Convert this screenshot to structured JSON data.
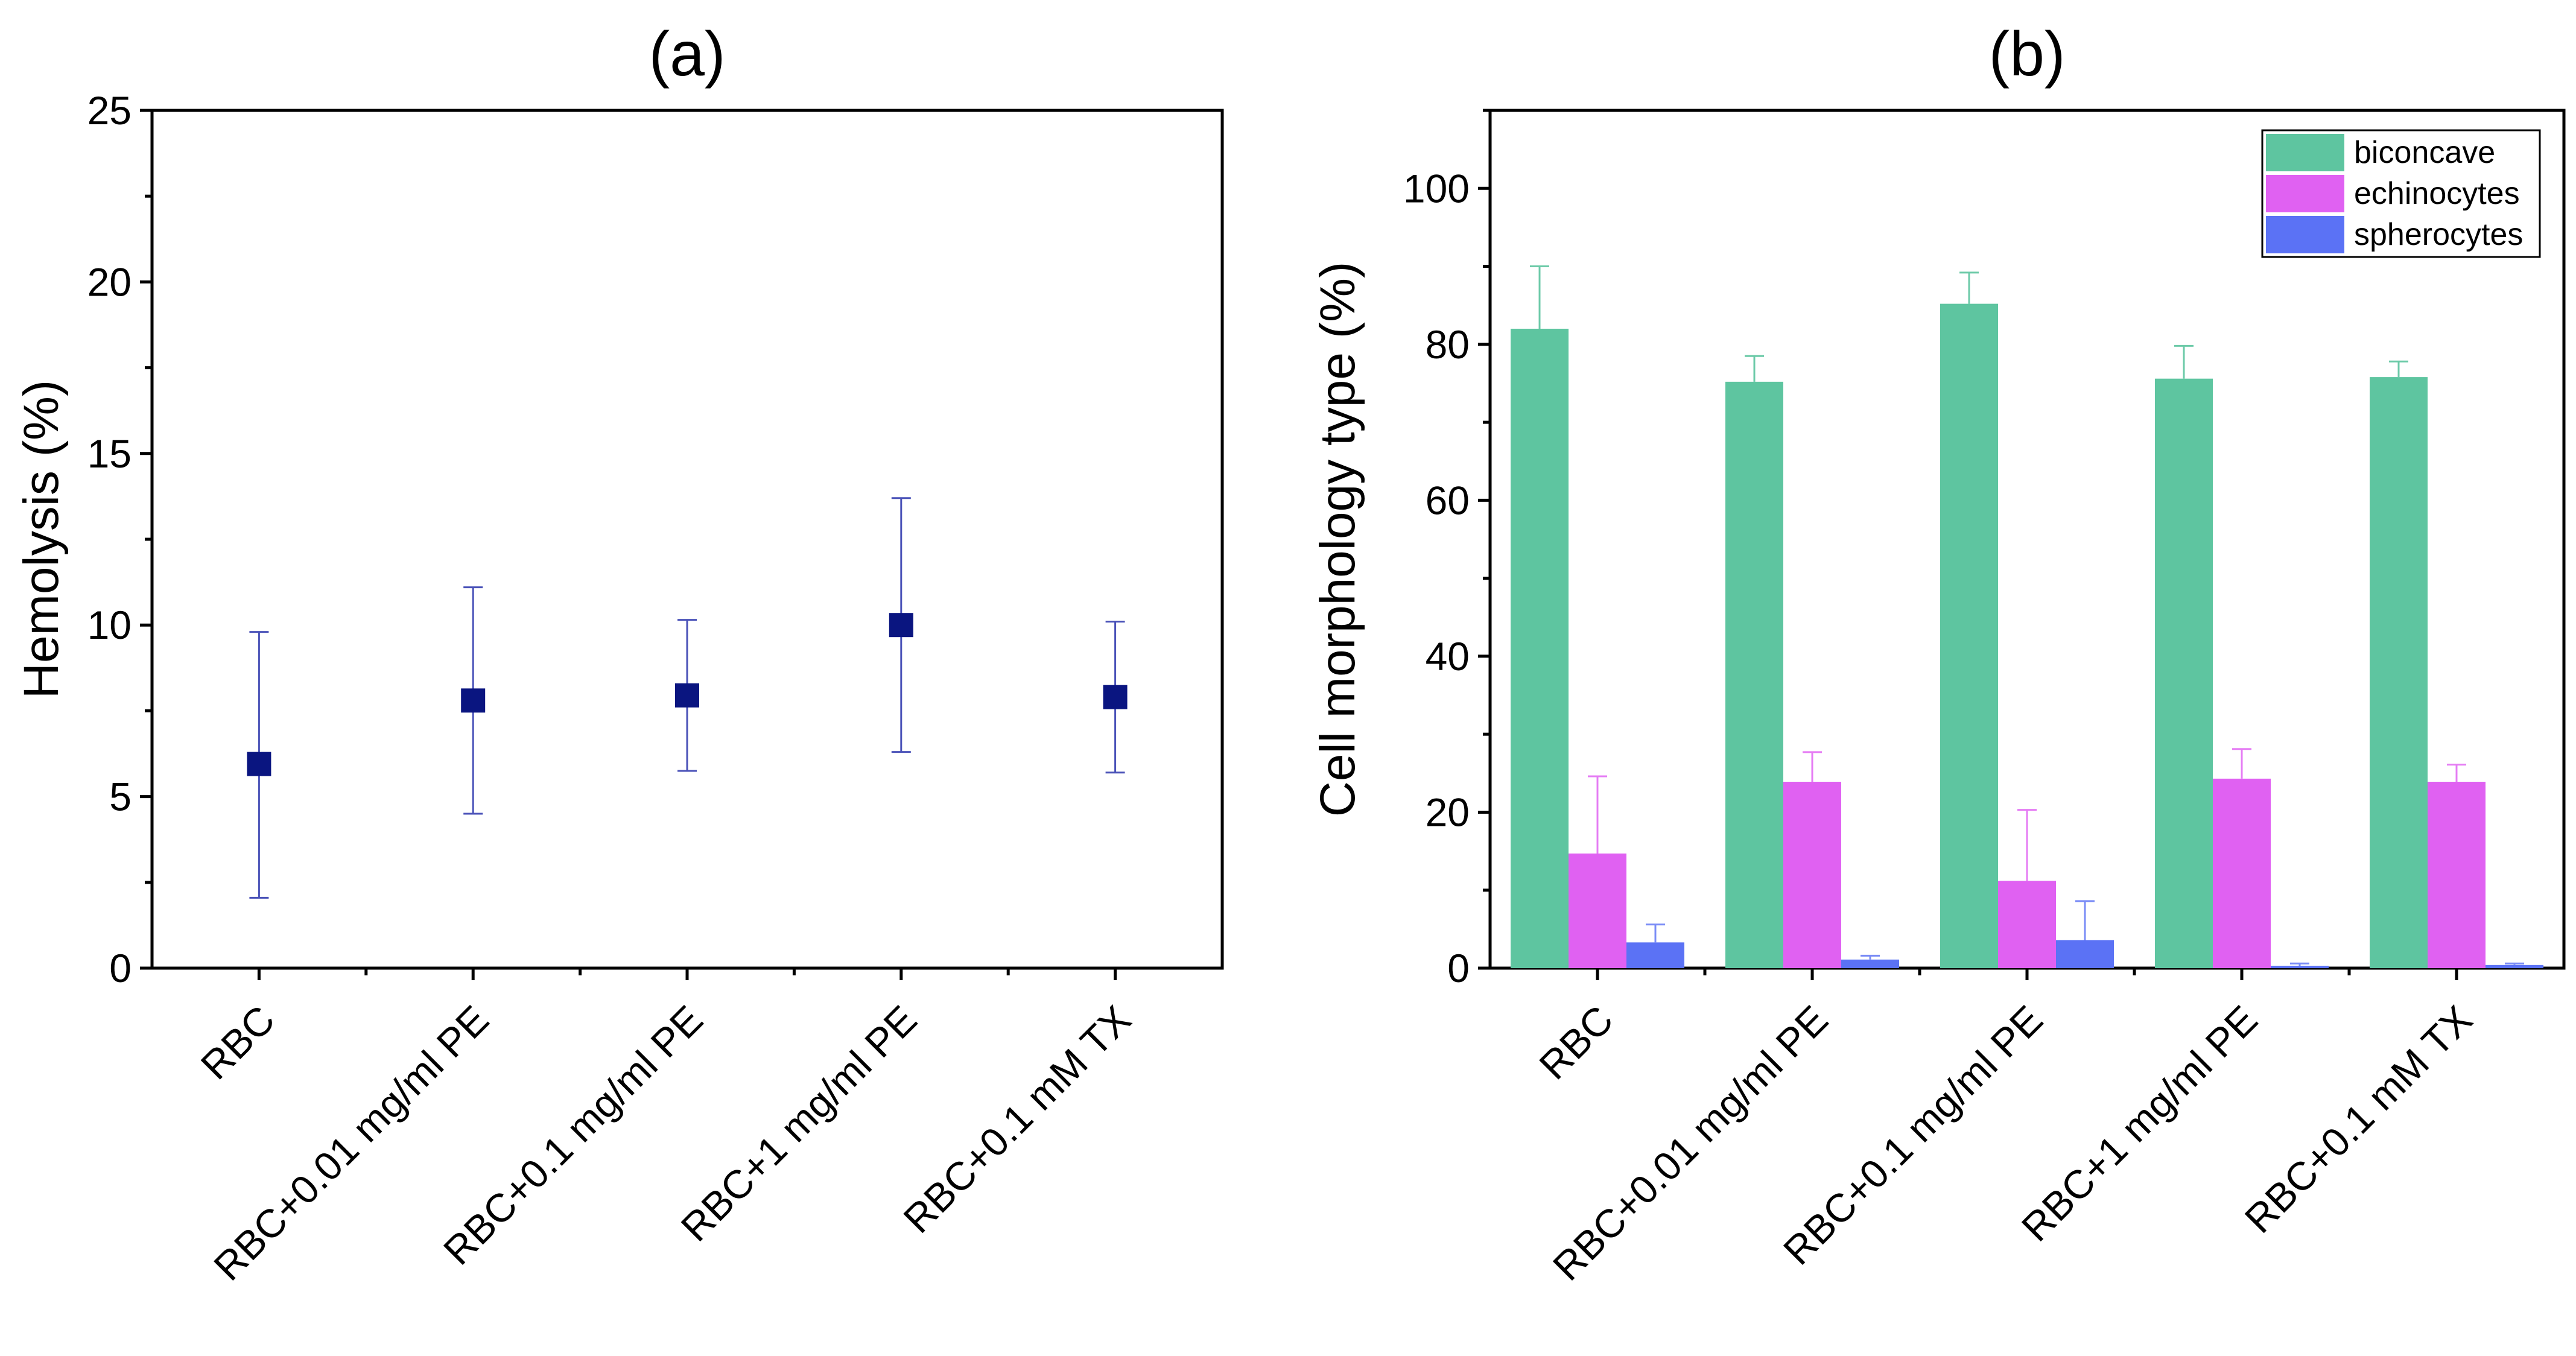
{
  "chart_data": [
    {
      "panel": "(a)",
      "type": "scatter",
      "categories": [
        "RBC",
        "RBC+0.01 mg/ml PE",
        "RBC+0.1 mg/ml PE",
        "RBC+1 mg/ml PE",
        "RBC+0.1 mM TX"
      ],
      "ylabel": "Hemolysis (%)",
      "ylim": [
        0,
        25
      ],
      "yticks": [
        0,
        5,
        10,
        15,
        20,
        25
      ],
      "grid": false,
      "marker": "square",
      "colors": {
        "marker": "#0a1580",
        "error": "#4a52b8"
      },
      "series": [
        {
          "values": [
            5.95,
            7.8,
            7.95,
            10.0,
            7.9
          ],
          "err_low": [
            2.05,
            4.5,
            5.75,
            6.3,
            5.7
          ],
          "err_high": [
            9.8,
            11.1,
            10.15,
            13.7,
            10.1
          ]
        }
      ]
    },
    {
      "panel": "(b)",
      "type": "bar",
      "categories": [
        "RBC",
        "RBC+0.01 mg/ml PE",
        "RBC+0.1 mg/ml PE",
        "RBC+1 mg/ml PE",
        "RBC+0.1 mM TX"
      ],
      "ylabel": "Cell morphology type (%)",
      "ylim": [
        0,
        110
      ],
      "yticks": [
        0,
        20,
        40,
        60,
        80,
        100
      ],
      "grid": false,
      "legend": "top-right",
      "series": [
        {
          "name": "biconcave",
          "color": "#5ec5a0",
          "errcolor": "#6ccaa8",
          "values": [
            82.0,
            75.2,
            85.2,
            75.6,
            75.8
          ],
          "err_high": [
            90.0,
            78.5,
            89.2,
            79.8,
            77.8
          ]
        },
        {
          "name": "echinocytes",
          "color": "#e061f2",
          "errcolor": "#e57cf4",
          "values": [
            14.7,
            23.9,
            11.2,
            24.3,
            23.9
          ],
          "err_high": [
            24.6,
            27.7,
            20.3,
            28.1,
            26.1
          ]
        },
        {
          "name": "spherocytes",
          "color": "#5b72f5",
          "errcolor": "#7a8cf6",
          "values": [
            3.3,
            1.1,
            3.6,
            0.3,
            0.4
          ],
          "err_high": [
            5.6,
            1.6,
            8.6,
            0.6,
            0.6
          ]
        }
      ]
    }
  ]
}
